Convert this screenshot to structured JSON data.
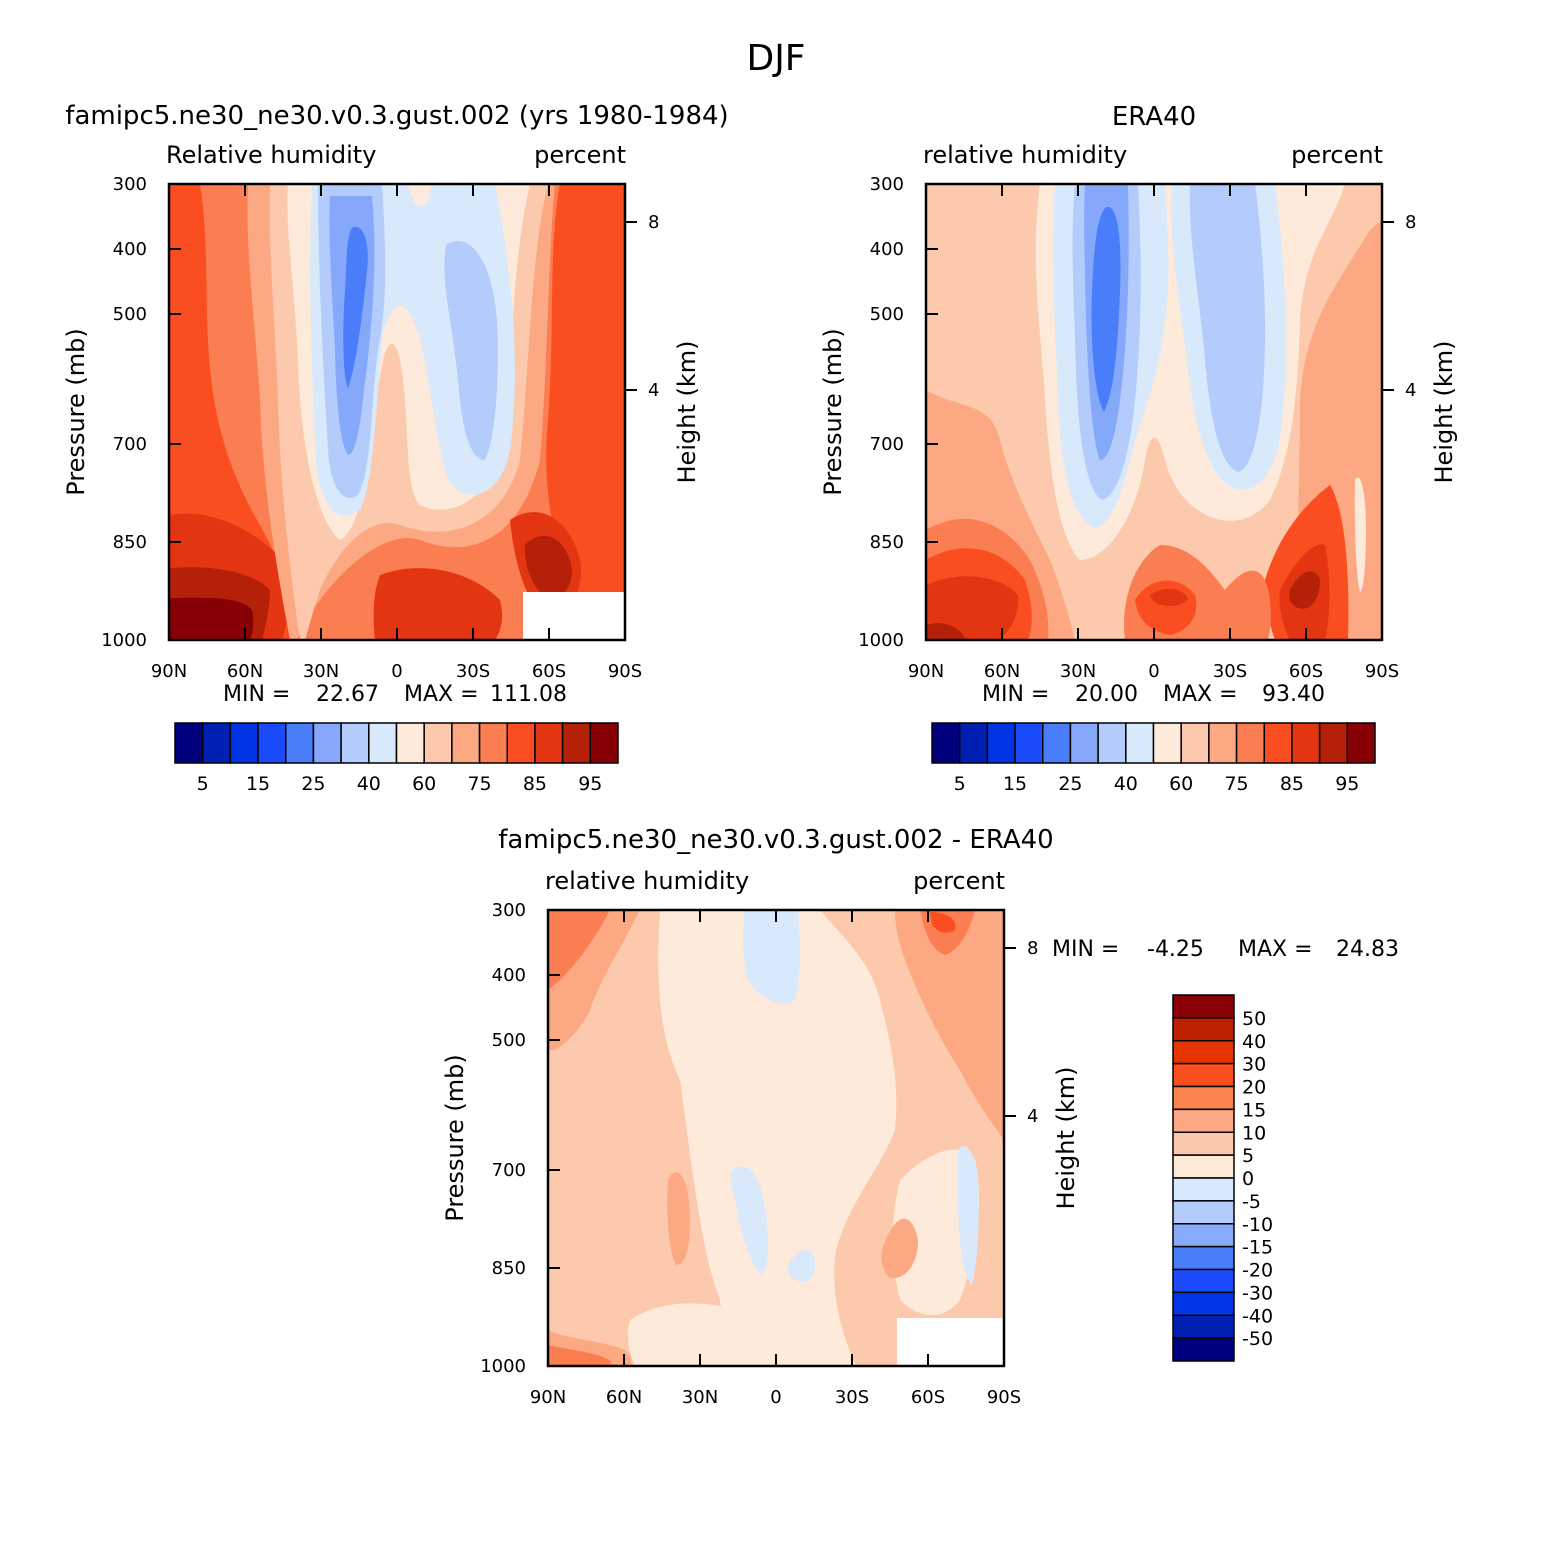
{
  "page_title": "DJF",
  "colors": {
    "abs_palette": [
      "#00007f",
      "#0020b4",
      "#0035e6",
      "#1a4cfc",
      "#4a7df9",
      "#86a8fb",
      "#b4ccfb",
      "#d8e9fc",
      "#fdeadb",
      "#fcc9ad",
      "#fca883",
      "#fb7d52",
      "#fa4e21",
      "#e33512",
      "#b52008",
      "#870006"
    ],
    "diff_palette_top_to_bottom": [
      "#8a0006",
      "#bc2200",
      "#e63600",
      "#fb4f20",
      "#fb8450",
      "#fca884",
      "#fcc8ac",
      "#fde9d8",
      "#d8e9fc",
      "#b4ccfb",
      "#88aafa",
      "#4a7df9",
      "#1a4cfc",
      "#0036e6",
      "#0020b4",
      "#00007f"
    ]
  },
  "chart_data": [
    {
      "type": "heatmap",
      "panel": "model",
      "title": "famipc5.ne30_ne30.v0.3.gust.002 (yrs 1980-1984)",
      "left_label": "Relative humidity",
      "right_label": "percent",
      "ylabel": "Pressure (mb)",
      "y2label": "Height (km)",
      "x_ticks": [
        "90N",
        "60N",
        "30N",
        "0",
        "30S",
        "60S",
        "90S"
      ],
      "y_ticks": [
        "300",
        "400",
        "500",
        "700",
        "850",
        "1000"
      ],
      "y2_ticks": [
        "8",
        "4"
      ],
      "min_label": "MIN =",
      "min_value": "22.67",
      "max_label": "MAX =",
      "max_value": "111.08",
      "colorbar_labels": [
        "5",
        "15",
        "25",
        "40",
        "60",
        "75",
        "85",
        "95"
      ]
    },
    {
      "type": "heatmap",
      "panel": "obs",
      "title": "ERA40",
      "left_label": "relative humidity",
      "right_label": "percent",
      "ylabel": "Pressure (mb)",
      "y2label": "Height (km)",
      "x_ticks": [
        "90N",
        "60N",
        "30N",
        "0",
        "30S",
        "60S",
        "90S"
      ],
      "y_ticks": [
        "300",
        "400",
        "500",
        "700",
        "850",
        "1000"
      ],
      "y2_ticks": [
        "8",
        "4"
      ],
      "min_label": "MIN =",
      "min_value": "20.00",
      "max_label": "MAX =",
      "max_value": "93.40",
      "colorbar_labels": [
        "5",
        "15",
        "25",
        "40",
        "60",
        "75",
        "85",
        "95"
      ]
    },
    {
      "type": "heatmap",
      "panel": "diff",
      "title": "famipc5.ne30_ne30.v0.3.gust.002 - ERA40",
      "left_label": "relative humidity",
      "right_label": "percent",
      "ylabel": "Pressure (mb)",
      "y2label": "Height (km)",
      "x_ticks": [
        "90N",
        "60N",
        "30N",
        "0",
        "30S",
        "60S",
        "90S"
      ],
      "y_ticks": [
        "300",
        "400",
        "500",
        "700",
        "850",
        "1000"
      ],
      "y2_ticks": [
        "8",
        "4"
      ],
      "min_label": "MIN =",
      "min_value": "-4.25",
      "max_label": "MAX =",
      "max_value": "24.83",
      "colorbar_labels": [
        "50",
        "40",
        "30",
        "20",
        "15",
        "10",
        "5",
        "0",
        "-5",
        "-10",
        "-15",
        "-20",
        "-30",
        "-40",
        "-50"
      ]
    }
  ]
}
